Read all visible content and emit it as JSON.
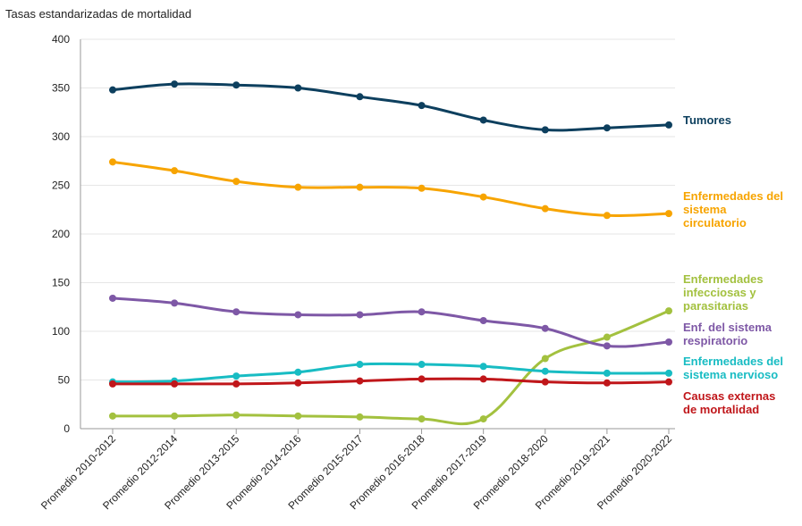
{
  "chart_data": {
    "type": "line",
    "title": "Tasas estandarizadas de mortalidad",
    "xlabel": "",
    "ylabel": "",
    "ylim": [
      0,
      400
    ],
    "yticks": [
      0,
      50,
      100,
      150,
      200,
      250,
      300,
      350,
      400
    ],
    "grid": true,
    "categories": [
      "Promedio 2010-2012",
      "Promedio 2012-2014",
      "Promedio 2013-2015",
      "Promedio 2014-2016",
      "Promedio 2015-2017",
      "Promedio 2016-2018",
      "Promedio 2017-2019",
      "Promedio 2018-2020",
      "Promedio 2019-2021",
      "Promedio 2020-2022"
    ],
    "series": [
      {
        "name": "Tumores",
        "label_lines": [
          "Tumores"
        ],
        "color": "#0d3f5e",
        "values": [
          348,
          354,
          353,
          350,
          341,
          332,
          317,
          307,
          309,
          312
        ]
      },
      {
        "name": "Enfermedades del sistema circulatorio",
        "label_lines": [
          "Enfermedades del",
          "sistema",
          "circulatorio"
        ],
        "color": "#f7a400",
        "values": [
          274,
          265,
          254,
          248,
          248,
          247,
          238,
          226,
          219,
          221
        ]
      },
      {
        "name": "Enfermedades infecciosas y parasitarias",
        "label_lines": [
          "Enfermedades",
          "infecciosas y",
          "parasitarias"
        ],
        "color": "#a3c13f",
        "values": [
          13,
          13,
          14,
          13,
          12,
          10,
          10,
          72,
          94,
          121
        ]
      },
      {
        "name": "Enf. del sistema respiratorio",
        "label_lines": [
          "Enf. del sistema",
          "respiratorio"
        ],
        "color": "#7e58a6",
        "values": [
          134,
          129,
          120,
          117,
          117,
          120,
          111,
          103,
          85,
          89
        ]
      },
      {
        "name": "Enfermedades del sistema nervioso",
        "label_lines": [
          "Enfermedades del",
          "sistema nervioso"
        ],
        "color": "#18bcc3",
        "values": [
          48,
          49,
          54,
          58,
          66,
          66,
          64,
          59,
          57,
          57
        ]
      },
      {
        "name": "Causas externas de mortalidad",
        "label_lines": [
          "Causas externas",
          "de mortalidad"
        ],
        "color": "#c0161a",
        "values": [
          46,
          46,
          46,
          47,
          49,
          51,
          51,
          48,
          47,
          48
        ]
      }
    ]
  }
}
